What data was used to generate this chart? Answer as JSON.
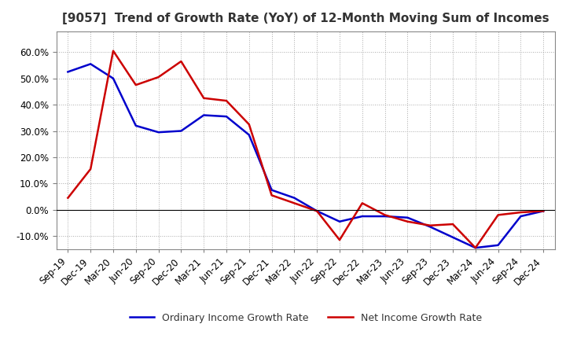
{
  "title": "[9057]  Trend of Growth Rate (YoY) of 12-Month Moving Sum of Incomes",
  "ylim": [
    -0.15,
    0.68
  ],
  "yticks": [
    -0.1,
    0.0,
    0.1,
    0.2,
    0.3,
    0.4,
    0.5,
    0.6
  ],
  "x_labels": [
    "Sep-19",
    "Dec-19",
    "Mar-20",
    "Jun-20",
    "Sep-20",
    "Dec-20",
    "Mar-21",
    "Jun-21",
    "Sep-21",
    "Dec-21",
    "Mar-22",
    "Jun-22",
    "Sep-22",
    "Dec-22",
    "Mar-23",
    "Jun-23",
    "Sep-23",
    "Dec-23",
    "Mar-24",
    "Jun-24",
    "Sep-24",
    "Dec-24"
  ],
  "ordinary_income": [
    0.525,
    0.555,
    0.5,
    0.32,
    0.295,
    0.3,
    0.36,
    0.355,
    0.285,
    0.075,
    0.045,
    -0.005,
    -0.045,
    -0.025,
    -0.025,
    -0.03,
    -0.065,
    -0.105,
    -0.145,
    -0.135,
    -0.025,
    -0.005
  ],
  "net_income": [
    0.045,
    0.155,
    0.605,
    0.475,
    0.505,
    0.565,
    0.425,
    0.415,
    0.325,
    0.055,
    0.025,
    -0.005,
    -0.115,
    0.025,
    -0.02,
    -0.045,
    -0.06,
    -0.055,
    -0.145,
    -0.02,
    -0.01,
    -0.005
  ],
  "ordinary_color": "#0000cc",
  "net_color": "#cc0000",
  "background_color": "#ffffff",
  "grid_color": "#aaaaaa",
  "legend_ordinary": "Ordinary Income Growth Rate",
  "legend_net": "Net Income Growth Rate",
  "title_fontsize": 11,
  "tick_fontsize": 8.5,
  "legend_fontsize": 9
}
